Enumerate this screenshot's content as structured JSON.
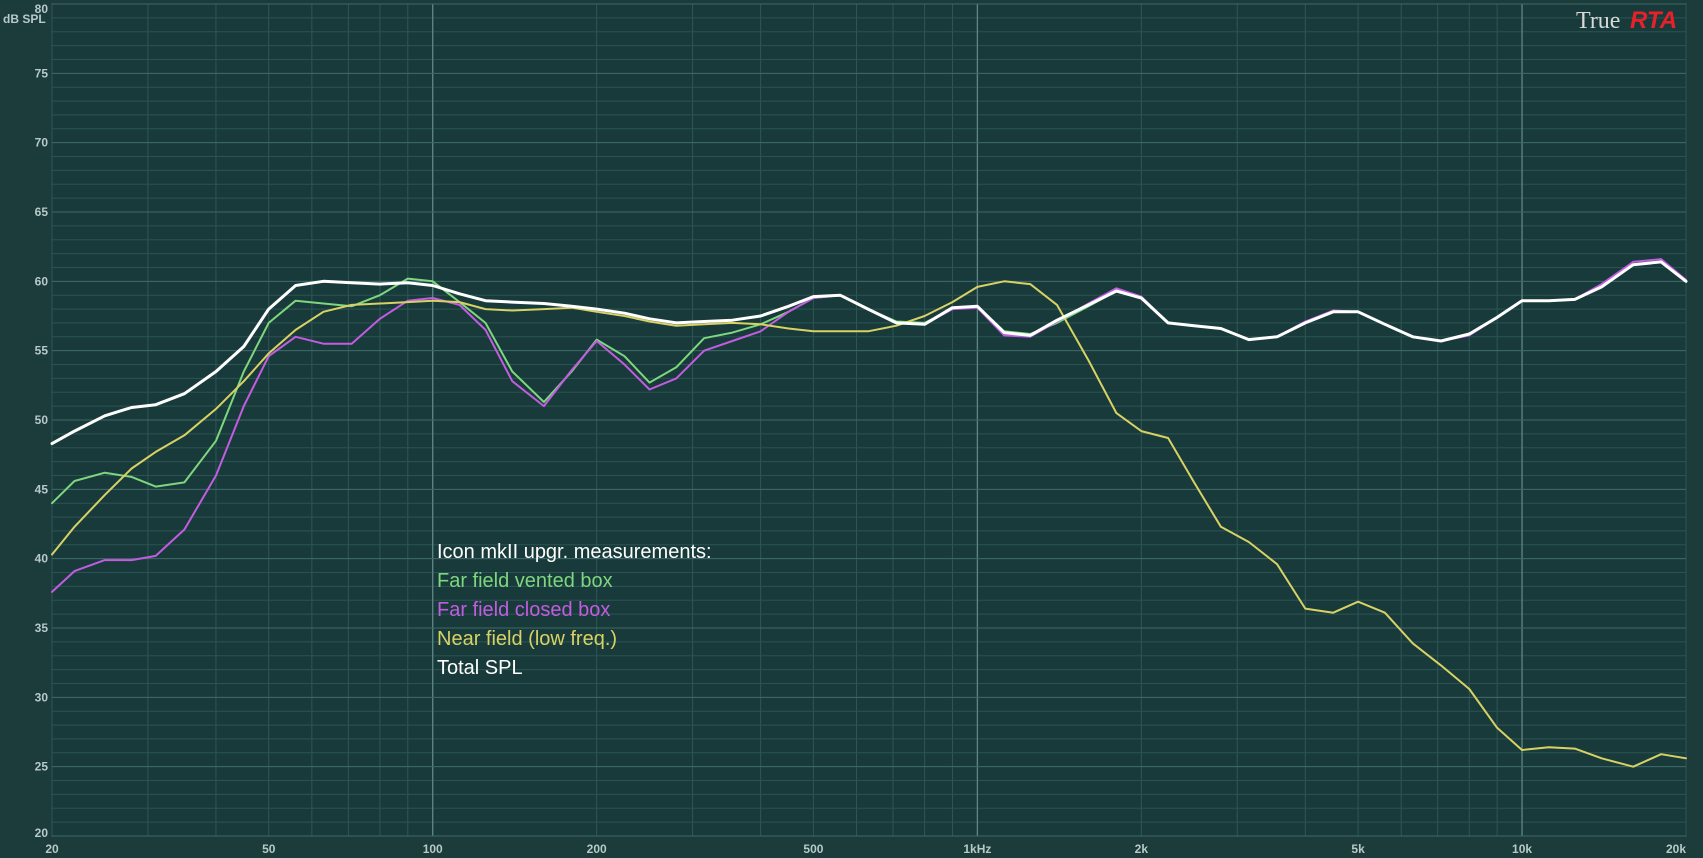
{
  "logo": {
    "part1": "True",
    "part2": "RTA"
  },
  "chart_data": {
    "type": "line",
    "y_unit_label": "dB SPL",
    "xscale": "log",
    "xlim": [
      20,
      20000
    ],
    "ylim": [
      20,
      80
    ],
    "grid": true,
    "x_ticks": [
      {
        "value": 20,
        "label": "20"
      },
      {
        "value": 50,
        "label": "50"
      },
      {
        "value": 100,
        "label": "100"
      },
      {
        "value": 200,
        "label": "200"
      },
      {
        "value": 500,
        "label": "500"
      },
      {
        "value": 1000,
        "label": "1kHz"
      },
      {
        "value": 2000,
        "label": "2k"
      },
      {
        "value": 5000,
        "label": "5k"
      },
      {
        "value": 10000,
        "label": "10k"
      },
      {
        "value": 20000,
        "label": "20k"
      }
    ],
    "y_ticks": [
      20,
      25,
      30,
      35,
      40,
      45,
      50,
      55,
      60,
      65,
      70,
      75,
      80
    ],
    "legend": {
      "title": "Icon mkII upgr. measurements:",
      "items": [
        "Far field vented box",
        "Far field closed box",
        "Near field (low freq.)",
        "Total SPL"
      ]
    },
    "series": [
      {
        "name": "Far field vented box",
        "color": "#7ed67e",
        "points": [
          [
            20,
            44.0
          ],
          [
            22,
            45.6
          ],
          [
            25,
            46.2
          ],
          [
            28,
            45.9
          ],
          [
            31,
            45.2
          ],
          [
            35,
            45.5
          ],
          [
            40,
            48.5
          ],
          [
            45,
            53.5
          ],
          [
            50,
            57.0
          ],
          [
            56,
            58.6
          ],
          [
            63,
            58.4
          ],
          [
            71,
            58.2
          ],
          [
            80,
            59.0
          ],
          [
            90,
            60.2
          ],
          [
            100,
            60.0
          ],
          [
            112,
            58.5
          ],
          [
            125,
            57.0
          ],
          [
            140,
            53.5
          ],
          [
            160,
            51.3
          ],
          [
            180,
            53.5
          ],
          [
            200,
            55.8
          ],
          [
            225,
            54.6
          ],
          [
            250,
            52.7
          ],
          [
            280,
            53.8
          ],
          [
            315,
            55.9
          ],
          [
            355,
            56.3
          ],
          [
            400,
            56.9
          ],
          [
            450,
            57.8
          ],
          [
            500,
            58.8
          ],
          [
            560,
            59.0
          ],
          [
            630,
            58.0
          ],
          [
            710,
            57.1
          ],
          [
            800,
            57.0
          ],
          [
            900,
            58.0
          ],
          [
            1000,
            58.2
          ],
          [
            1120,
            56.4
          ],
          [
            1250,
            56.2
          ],
          [
            1400,
            57.0
          ],
          [
            1600,
            58.2
          ],
          [
            1800,
            59.3
          ],
          [
            2000,
            58.8
          ],
          [
            2240,
            57.0
          ],
          [
            2500,
            56.8
          ],
          [
            2800,
            56.6
          ],
          [
            3150,
            55.8
          ],
          [
            3550,
            56.0
          ],
          [
            4000,
            57.0
          ],
          [
            4500,
            57.8
          ],
          [
            5000,
            57.8
          ],
          [
            5600,
            56.9
          ],
          [
            6300,
            56.0
          ],
          [
            7100,
            55.7
          ],
          [
            8000,
            56.2
          ],
          [
            9000,
            57.4
          ],
          [
            10000,
            58.6
          ],
          [
            11200,
            58.6
          ],
          [
            12500,
            58.7
          ],
          [
            14000,
            59.6
          ],
          [
            16000,
            61.2
          ],
          [
            18000,
            61.4
          ],
          [
            20000,
            60.0
          ]
        ]
      },
      {
        "name": "Far field closed box",
        "color": "#c25ce0",
        "points": [
          [
            20,
            37.6
          ],
          [
            22,
            39.1
          ],
          [
            25,
            39.9
          ],
          [
            28,
            39.9
          ],
          [
            31,
            40.2
          ],
          [
            35,
            42.1
          ],
          [
            40,
            46.0
          ],
          [
            45,
            51.0
          ],
          [
            50,
            54.6
          ],
          [
            56,
            56.0
          ],
          [
            63,
            55.5
          ],
          [
            71,
            55.5
          ],
          [
            80,
            57.3
          ],
          [
            90,
            58.6
          ],
          [
            100,
            58.8
          ],
          [
            112,
            58.3
          ],
          [
            125,
            56.5
          ],
          [
            140,
            52.8
          ],
          [
            160,
            51.0
          ],
          [
            180,
            53.6
          ],
          [
            200,
            55.7
          ],
          [
            225,
            54.0
          ],
          [
            250,
            52.2
          ],
          [
            280,
            53.0
          ],
          [
            315,
            55.0
          ],
          [
            355,
            55.7
          ],
          [
            400,
            56.4
          ],
          [
            450,
            57.8
          ],
          [
            500,
            58.8
          ],
          [
            560,
            59.0
          ],
          [
            630,
            58.0
          ],
          [
            710,
            57.0
          ],
          [
            800,
            56.9
          ],
          [
            900,
            58.0
          ],
          [
            1000,
            58.1
          ],
          [
            1120,
            56.1
          ],
          [
            1250,
            56.0
          ],
          [
            1400,
            57.1
          ],
          [
            1600,
            58.4
          ],
          [
            1800,
            59.5
          ],
          [
            2000,
            58.9
          ],
          [
            2240,
            57.0
          ],
          [
            2500,
            56.8
          ],
          [
            2800,
            56.6
          ],
          [
            3150,
            55.8
          ],
          [
            3550,
            56.0
          ],
          [
            4000,
            57.1
          ],
          [
            4500,
            57.9
          ],
          [
            5000,
            57.8
          ],
          [
            5600,
            56.9
          ],
          [
            6300,
            56.0
          ],
          [
            7100,
            55.7
          ],
          [
            8000,
            56.1
          ],
          [
            9000,
            57.4
          ],
          [
            10000,
            58.6
          ],
          [
            11200,
            58.6
          ],
          [
            12500,
            58.7
          ],
          [
            14000,
            59.8
          ],
          [
            16000,
            61.4
          ],
          [
            18000,
            61.6
          ],
          [
            20000,
            60.1
          ]
        ]
      },
      {
        "name": "Near field (low freq.)",
        "color": "#d8d264",
        "points": [
          [
            20,
            40.3
          ],
          [
            22,
            42.3
          ],
          [
            25,
            44.6
          ],
          [
            28,
            46.5
          ],
          [
            31,
            47.7
          ],
          [
            35,
            48.9
          ],
          [
            40,
            50.8
          ],
          [
            45,
            52.8
          ],
          [
            50,
            54.8
          ],
          [
            56,
            56.5
          ],
          [
            63,
            57.8
          ],
          [
            71,
            58.3
          ],
          [
            80,
            58.4
          ],
          [
            90,
            58.5
          ],
          [
            100,
            58.6
          ],
          [
            112,
            58.5
          ],
          [
            125,
            58.0
          ],
          [
            140,
            57.9
          ],
          [
            160,
            58.0
          ],
          [
            180,
            58.1
          ],
          [
            200,
            57.8
          ],
          [
            225,
            57.5
          ],
          [
            250,
            57.1
          ],
          [
            280,
            56.8
          ],
          [
            315,
            56.9
          ],
          [
            355,
            57.0
          ],
          [
            400,
            56.9
          ],
          [
            450,
            56.6
          ],
          [
            500,
            56.4
          ],
          [
            560,
            56.4
          ],
          [
            630,
            56.4
          ],
          [
            710,
            56.8
          ],
          [
            800,
            57.5
          ],
          [
            900,
            58.5
          ],
          [
            1000,
            59.6
          ],
          [
            1120,
            60.0
          ],
          [
            1250,
            59.8
          ],
          [
            1400,
            58.3
          ],
          [
            1600,
            54.3
          ],
          [
            1800,
            50.5
          ],
          [
            2000,
            49.2
          ],
          [
            2240,
            48.7
          ],
          [
            2500,
            45.5
          ],
          [
            2800,
            42.3
          ],
          [
            3150,
            41.2
          ],
          [
            3550,
            39.6
          ],
          [
            4000,
            36.4
          ],
          [
            4500,
            36.1
          ],
          [
            5000,
            36.9
          ],
          [
            5600,
            36.1
          ],
          [
            6300,
            33.9
          ],
          [
            7100,
            32.3
          ],
          [
            8000,
            30.6
          ],
          [
            9000,
            27.8
          ],
          [
            10000,
            26.2
          ],
          [
            11200,
            26.4
          ],
          [
            12500,
            26.3
          ],
          [
            14000,
            25.6
          ],
          [
            16000,
            25.0
          ],
          [
            18000,
            25.9
          ],
          [
            20000,
            25.6
          ]
        ]
      },
      {
        "name": "Total SPL",
        "color": "#ffffff",
        "points": [
          [
            20,
            48.3
          ],
          [
            22,
            49.2
          ],
          [
            25,
            50.3
          ],
          [
            28,
            50.9
          ],
          [
            31,
            51.1
          ],
          [
            35,
            51.9
          ],
          [
            40,
            53.5
          ],
          [
            45,
            55.3
          ],
          [
            50,
            58.0
          ],
          [
            56,
            59.7
          ],
          [
            63,
            60.0
          ],
          [
            71,
            59.9
          ],
          [
            80,
            59.8
          ],
          [
            90,
            59.9
          ],
          [
            100,
            59.7
          ],
          [
            112,
            59.1
          ],
          [
            125,
            58.6
          ],
          [
            140,
            58.5
          ],
          [
            160,
            58.4
          ],
          [
            180,
            58.2
          ],
          [
            200,
            58.0
          ],
          [
            225,
            57.7
          ],
          [
            250,
            57.3
          ],
          [
            280,
            57.0
          ],
          [
            315,
            57.1
          ],
          [
            355,
            57.2
          ],
          [
            400,
            57.5
          ],
          [
            450,
            58.2
          ],
          [
            500,
            58.9
          ],
          [
            560,
            59.0
          ],
          [
            630,
            58.0
          ],
          [
            710,
            57.0
          ],
          [
            800,
            56.9
          ],
          [
            900,
            58.1
          ],
          [
            1000,
            58.2
          ],
          [
            1120,
            56.3
          ],
          [
            1250,
            56.1
          ],
          [
            1400,
            57.2
          ],
          [
            1600,
            58.3
          ],
          [
            1800,
            59.3
          ],
          [
            2000,
            58.8
          ],
          [
            2240,
            57.0
          ],
          [
            2500,
            56.8
          ],
          [
            2800,
            56.6
          ],
          [
            3150,
            55.8
          ],
          [
            3550,
            56.0
          ],
          [
            4000,
            57.0
          ],
          [
            4500,
            57.8
          ],
          [
            5000,
            57.8
          ],
          [
            5600,
            56.9
          ],
          [
            6300,
            56.0
          ],
          [
            7100,
            55.7
          ],
          [
            8000,
            56.2
          ],
          [
            9000,
            57.4
          ],
          [
            10000,
            58.6
          ],
          [
            11200,
            58.6
          ],
          [
            12500,
            58.7
          ],
          [
            14000,
            59.6
          ],
          [
            16000,
            61.2
          ],
          [
            18000,
            61.4
          ],
          [
            20000,
            60.0
          ]
        ]
      }
    ]
  }
}
